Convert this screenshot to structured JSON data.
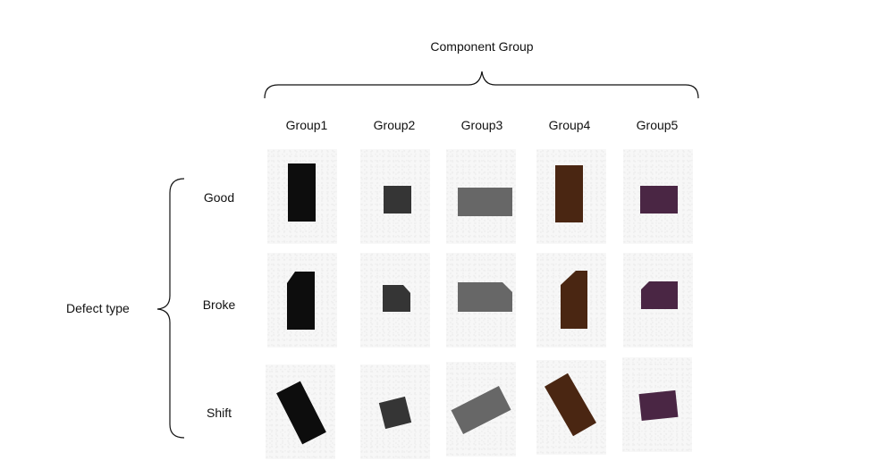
{
  "header": {
    "title": "Component Group"
  },
  "side": {
    "title": "Defect type"
  },
  "columns": [
    "Group1",
    "Group2",
    "Group3",
    "Group4",
    "Group5"
  ],
  "rows": [
    "Good",
    "Broke",
    "Shift"
  ],
  "colors": {
    "group1": "#0d0d0d",
    "group2": "#353535",
    "group3": "#676767",
    "group4": "#4a2612",
    "group5": "#4a2644"
  }
}
